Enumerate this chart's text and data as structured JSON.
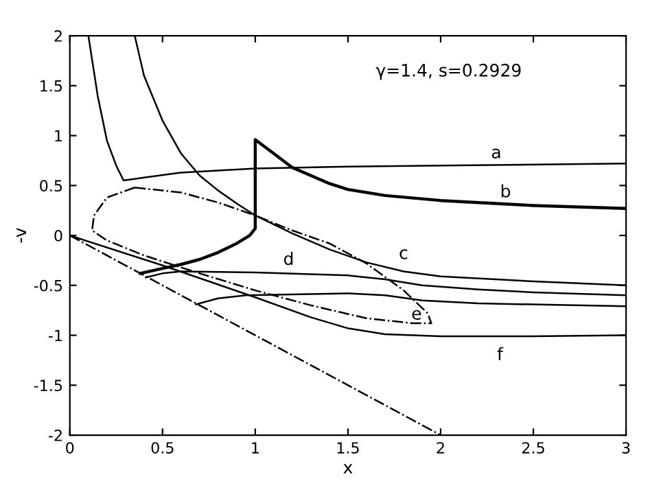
{
  "chart_data": {
    "type": "line",
    "xlabel": "x",
    "ylabel": "-v",
    "xlim": [
      0,
      3
    ],
    "ylim": [
      -2,
      2
    ],
    "xticks": [
      0,
      0.5,
      1,
      1.5,
      2,
      2.5,
      3
    ],
    "yticks": [
      -2,
      -1.5,
      -1,
      -0.5,
      0,
      0.5,
      1,
      1.5,
      2
    ],
    "grid": false,
    "series": [
      {
        "name": "a",
        "color": "#000000",
        "line_style": "solid",
        "x": [
          0.1,
          0.15,
          0.2,
          0.25,
          0.29,
          0.4,
          0.6,
          1,
          1.5,
          2,
          3
        ],
        "values": [
          2,
          1.4,
          0.95,
          0.7,
          0.55,
          0.58,
          0.63,
          0.67,
          0.69,
          0.7,
          0.72
        ]
      },
      {
        "name": "b",
        "color": "#000000",
        "line_style": "solid",
        "x": [
          0.38,
          0.5,
          0.6,
          0.7,
          0.8,
          0.9,
          0.97,
          1,
          1,
          1.1,
          1.2,
          1.4,
          1.5,
          1.7,
          2,
          2.5,
          3
        ],
        "values": [
          -0.38,
          -0.33,
          -0.29,
          -0.24,
          -0.17,
          -0.08,
          0.0,
          0.07,
          0.96,
          0.82,
          0.68,
          0.52,
          0.46,
          0.4,
          0.35,
          0.3,
          0.27
        ]
      },
      {
        "name": "c",
        "color": "#000000",
        "line_style": "solid",
        "x": [
          0.35,
          0.4,
          0.5,
          0.6,
          0.7,
          0.8,
          0.9,
          1,
          1.2,
          1.4,
          1.6,
          1.8,
          2,
          2.5,
          3
        ],
        "values": [
          2,
          1.6,
          1.15,
          0.82,
          0.6,
          0.45,
          0.32,
          0.2,
          0.02,
          -0.14,
          -0.27,
          -0.36,
          -0.41,
          -0.46,
          -0.5
        ]
      },
      {
        "name": "d",
        "color": "#000000",
        "line_style": "solid",
        "x": [
          0.41,
          0.5,
          0.6,
          1,
          1.5,
          1.7,
          1.9,
          2.2,
          2.5,
          3
        ],
        "values": [
          -0.42,
          -0.38,
          -0.36,
          -0.37,
          -0.4,
          -0.44,
          -0.5,
          -0.54,
          -0.57,
          -0.6
        ]
      },
      {
        "name": "e",
        "color": "#000000",
        "line_style": "solid",
        "x": [
          0.68,
          0.8,
          0.95,
          1.5,
          1.7,
          1.9,
          2.2,
          3
        ],
        "values": [
          -0.69,
          -0.63,
          -0.6,
          -0.58,
          -0.6,
          -0.65,
          -0.68,
          -0.71
        ]
      },
      {
        "name": "f",
        "color": "#000000",
        "line_style": "solid",
        "x": [
          0,
          0.5,
          1,
          1.3,
          1.5,
          1.7,
          2,
          2.5,
          3
        ],
        "values": [
          0,
          -0.3,
          -0.62,
          -0.82,
          -0.93,
          -0.99,
          -1.01,
          -1.01,
          -1.0
        ]
      },
      {
        "color": "#000000",
        "line_style": "dashdot",
        "x": [
          0,
          2
        ],
        "values": [
          0,
          -2
        ]
      }
    ],
    "annotations": [
      "γ=1.4, s=0.2929"
    ]
  }
}
